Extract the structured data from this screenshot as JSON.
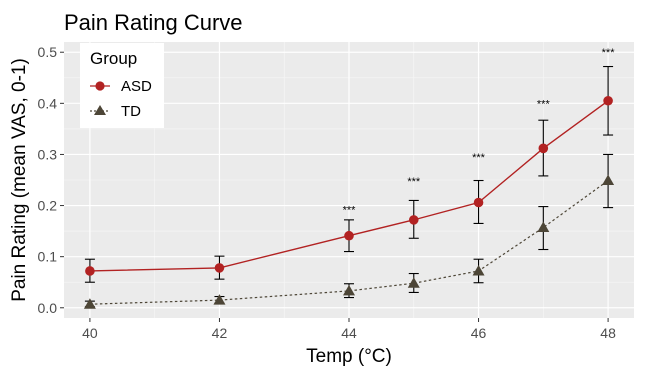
{
  "chart_data": {
    "type": "line",
    "title": "Pain Rating Curve",
    "xlabel": "Temp (°C)",
    "ylabel": "Pain Rating (mean VAS, 0-1)",
    "x": [
      40,
      42,
      44,
      45,
      46,
      47,
      48
    ],
    "x_ticks": [
      40,
      42,
      44,
      46,
      48
    ],
    "y_ticks": [
      0.0,
      0.1,
      0.2,
      0.3,
      0.4,
      0.5
    ],
    "y_tick_labels": [
      "0.0",
      "0.1",
      "0.2",
      "0.3",
      "0.4",
      "0.5"
    ],
    "xlim": [
      39.6,
      48.4
    ],
    "ylim": [
      -0.02,
      0.52
    ],
    "grid": true,
    "legend": {
      "title": "Group",
      "position": "top-left"
    },
    "series": [
      {
        "name": "ASD",
        "color": "#b22222",
        "marker": "circle",
        "line": "solid",
        "values": [
          0.072,
          0.078,
          0.141,
          0.172,
          0.206,
          0.312,
          0.405
        ],
        "err_low": [
          0.05,
          0.056,
          0.11,
          0.136,
          0.165,
          0.258,
          0.338
        ],
        "err_high": [
          0.095,
          0.101,
          0.172,
          0.21,
          0.249,
          0.367,
          0.472
        ]
      },
      {
        "name": "TD",
        "color": "#4d4637",
        "marker": "triangle",
        "line": "dotted",
        "values": [
          0.007,
          0.015,
          0.033,
          0.048,
          0.072,
          0.157,
          0.249
        ],
        "err_low": [
          0.002,
          0.009,
          0.02,
          0.03,
          0.049,
          0.114,
          0.196
        ],
        "err_high": [
          0.013,
          0.022,
          0.047,
          0.067,
          0.095,
          0.198,
          0.3
        ]
      }
    ],
    "annotations": [
      {
        "x": 44,
        "y": 0.192,
        "text": "***"
      },
      {
        "x": 45,
        "y": 0.248,
        "text": "***"
      },
      {
        "x": 46,
        "y": 0.295,
        "text": "***"
      },
      {
        "x": 47,
        "y": 0.4,
        "text": "***"
      },
      {
        "x": 48,
        "y": 0.5,
        "text": "***"
      }
    ]
  }
}
